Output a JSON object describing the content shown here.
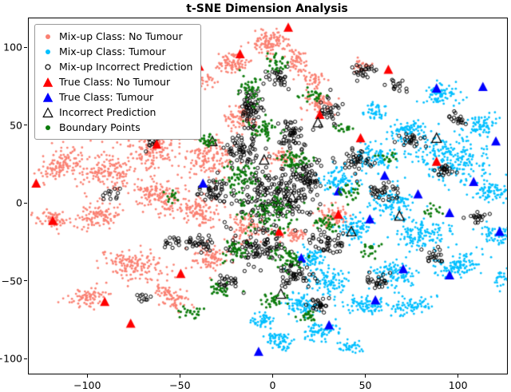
{
  "chart_data": {
    "type": "scatter",
    "title": "t-SNE Dimension Analysis",
    "xlabel": "",
    "ylabel": "",
    "xlim": [
      -132,
      126
    ],
    "ylim": [
      -109,
      119
    ],
    "x_ticks": [
      -100,
      -50,
      0,
      50,
      100
    ],
    "y_ticks": [
      -100,
      -50,
      0,
      50,
      100
    ],
    "x_tick_labels": [
      "−100",
      "−50",
      "0",
      "50",
      "100"
    ],
    "y_tick_labels": [
      "−100",
      "−50",
      "0",
      "50",
      "100"
    ],
    "grid": false,
    "legend_position": "upper-left",
    "cluster_format": [
      "cx",
      "cy",
      "rx",
      "ry",
      "angle_deg",
      "n"
    ],
    "point_format": [
      "x",
      "y"
    ],
    "series": [
      {
        "label": "Mix-up Class: No Tumour",
        "marker": "dot",
        "color": "#fa8072",
        "marker_size": 1.4,
        "clusters": [
          [
            -100,
            55,
            22,
            12,
            -15,
            260
          ],
          [
            -70,
            65,
            14,
            8,
            25,
            150
          ],
          [
            -45,
            78,
            12,
            6,
            10,
            110
          ],
          [
            -22,
            90,
            8,
            6,
            0,
            90
          ],
          [
            -3,
            103,
            9,
            7,
            0,
            110
          ],
          [
            12,
            92,
            5,
            7,
            0,
            60
          ],
          [
            -115,
            25,
            12,
            7,
            40,
            110
          ],
          [
            -90,
            20,
            16,
            10,
            -10,
            170
          ],
          [
            -65,
            35,
            12,
            9,
            20,
            130
          ],
          [
            -120,
            -10,
            9,
            5,
            -20,
            70
          ],
          [
            -95,
            -8,
            12,
            7,
            10,
            110
          ],
          [
            -60,
            5,
            14,
            10,
            0,
            150
          ],
          [
            -35,
            30,
            12,
            12,
            0,
            150
          ],
          [
            -40,
            -5,
            10,
            8,
            -25,
            110
          ],
          [
            -18,
            55,
            8,
            8,
            0,
            80
          ],
          [
            -75,
            -40,
            16,
            9,
            -15,
            150
          ],
          [
            -100,
            -60,
            10,
            6,
            15,
            80
          ],
          [
            -55,
            -60,
            10,
            6,
            -30,
            80
          ],
          [
            -35,
            -35,
            10,
            7,
            20,
            90
          ],
          [
            -15,
            -15,
            9,
            8,
            0,
            90
          ],
          [
            25,
            65,
            8,
            7,
            0,
            70
          ],
          [
            22,
            80,
            5,
            5,
            0,
            40
          ],
          [
            32,
            -8,
            8,
            6,
            -20,
            80
          ],
          [
            12,
            -20,
            6,
            5,
            0,
            45
          ],
          [
            5,
            30,
            7,
            6,
            0,
            55
          ],
          [
            48,
            88,
            5,
            4,
            0,
            30
          ]
        ]
      },
      {
        "label": "Mix-up Class: Tumour",
        "marker": "dot",
        "color": "#00bfff",
        "marker_size": 1.4,
        "clusters": [
          [
            95,
            30,
            20,
            13,
            -15,
            240
          ],
          [
            118,
            8,
            9,
            6,
            0,
            80
          ],
          [
            112,
            50,
            8,
            6,
            30,
            70
          ],
          [
            120,
            -20,
            8,
            6,
            -30,
            60
          ],
          [
            100,
            -40,
            12,
            7,
            20,
            110
          ],
          [
            80,
            -20,
            13,
            9,
            0,
            130
          ],
          [
            65,
            0,
            11,
            9,
            0,
            110
          ],
          [
            55,
            30,
            10,
            8,
            0,
            100
          ],
          [
            72,
            48,
            9,
            6,
            15,
            80
          ],
          [
            90,
            70,
            9,
            6,
            0,
            80
          ],
          [
            65,
            -45,
            11,
            7,
            -20,
            100
          ],
          [
            75,
            -65,
            9,
            5,
            10,
            70
          ],
          [
            50,
            -65,
            10,
            6,
            0,
            90
          ],
          [
            30,
            -50,
            10,
            8,
            0,
            100
          ],
          [
            15,
            -65,
            10,
            6,
            -15,
            90
          ],
          [
            25,
            -82,
            9,
            5,
            10,
            80
          ],
          [
            2,
            -88,
            8,
            5,
            -10,
            70
          ],
          [
            -5,
            -75,
            6,
            5,
            0,
            50
          ],
          [
            40,
            -92,
            6,
            4,
            0,
            40
          ],
          [
            35,
            15,
            9,
            8,
            0,
            90
          ],
          [
            45,
            -15,
            9,
            8,
            0,
            90
          ],
          [
            20,
            -35,
            8,
            6,
            0,
            70
          ],
          [
            125,
            -48,
            5,
            6,
            0,
            35
          ],
          [
            55,
            60,
            6,
            5,
            0,
            45
          ]
        ]
      },
      {
        "label": "Mix-up Incorrect Prediction",
        "marker": "ring",
        "color": "#000000",
        "marker_size": 2.1,
        "clusters": [
          [
            0,
            5,
            20,
            18,
            0,
            220
          ],
          [
            -12,
            62,
            5,
            13,
            0,
            70
          ],
          [
            -18,
            35,
            9,
            9,
            0,
            60
          ],
          [
            10,
            45,
            8,
            9,
            0,
            55
          ],
          [
            18,
            18,
            7,
            9,
            0,
            55
          ],
          [
            -8,
            -28,
            12,
            9,
            0,
            90
          ],
          [
            12,
            -45,
            9,
            7,
            0,
            50
          ],
          [
            30,
            -25,
            9,
            7,
            0,
            45
          ],
          [
            -32,
            8,
            8,
            7,
            0,
            45
          ],
          [
            -40,
            -25,
            7,
            6,
            0,
            35
          ],
          [
            45,
            28,
            9,
            7,
            0,
            40
          ],
          [
            60,
            8,
            8,
            6,
            0,
            35
          ],
          [
            3,
            80,
            6,
            6,
            0,
            30
          ],
          [
            30,
            60,
            6,
            6,
            0,
            30
          ],
          [
            48,
            85,
            6,
            5,
            0,
            25
          ],
          [
            75,
            40,
            7,
            5,
            0,
            25
          ],
          [
            92,
            22,
            6,
            5,
            0,
            25
          ],
          [
            100,
            55,
            5,
            4,
            0,
            18
          ],
          [
            110,
            -8,
            5,
            4,
            0,
            18
          ],
          [
            85,
            -35,
            6,
            5,
            0,
            20
          ],
          [
            55,
            -50,
            7,
            5,
            0,
            25
          ],
          [
            25,
            -65,
            7,
            5,
            0,
            25
          ],
          [
            -25,
            -50,
            7,
            5,
            0,
            25
          ],
          [
            -55,
            -25,
            5,
            4,
            0,
            15
          ],
          [
            -65,
            40,
            5,
            4,
            0,
            15
          ],
          [
            -88,
            8,
            4,
            4,
            0,
            12
          ],
          [
            -50,
            65,
            4,
            4,
            0,
            12
          ],
          [
            65,
            75,
            5,
            4,
            0,
            15
          ],
          [
            -70,
            -60,
            4,
            3,
            0,
            10
          ]
        ]
      },
      {
        "label": "True Class: No Tumour",
        "marker": "triangle",
        "color": "#ff0000",
        "marker_size": 6.5,
        "points": [
          [
            -128,
            13
          ],
          [
            -119,
            -11
          ],
          [
            -91,
            -63
          ],
          [
            -77,
            -77
          ],
          [
            -63,
            38
          ],
          [
            -40,
            88
          ],
          [
            -18,
            96
          ],
          [
            8,
            113
          ],
          [
            25,
            57
          ],
          [
            35,
            -7
          ],
          [
            3,
            -18
          ],
          [
            47,
            42
          ],
          [
            62,
            86
          ],
          [
            88,
            27
          ],
          [
            -50,
            -45
          ]
        ]
      },
      {
        "label": "True Class: Tumour",
        "marker": "triangle",
        "color": "#0000ff",
        "marker_size": 6.5,
        "points": [
          [
            113,
            75
          ],
          [
            88,
            74
          ],
          [
            120,
            40
          ],
          [
            108,
            14
          ],
          [
            122,
            -18
          ],
          [
            95,
            -6
          ],
          [
            78,
            6
          ],
          [
            60,
            18
          ],
          [
            52,
            -10
          ],
          [
            70,
            -42
          ],
          [
            95,
            -46
          ],
          [
            55,
            -62
          ],
          [
            30,
            -78
          ],
          [
            -8,
            -95
          ],
          [
            -38,
            13
          ],
          [
            35,
            8
          ],
          [
            15,
            -35
          ]
        ]
      },
      {
        "label": "Incorrect Prediction",
        "marker": "triangle_open",
        "color": "#000000",
        "marker_size": 6.5,
        "points": [
          [
            10,
            4
          ],
          [
            -22,
            -28
          ],
          [
            42,
            -18
          ],
          [
            24,
            52
          ],
          [
            -33,
            40
          ],
          [
            68,
            -8
          ],
          [
            4,
            -58
          ],
          [
            88,
            42
          ],
          [
            -5,
            28
          ]
        ]
      },
      {
        "label": "Boundary Points",
        "marker": "dot",
        "color": "#0a7a0a",
        "marker_size": 1.6,
        "clusters": [
          [
            -2,
            -5,
            15,
            12,
            0,
            110
          ],
          [
            -18,
            18,
            9,
            9,
            0,
            65
          ],
          [
            12,
            28,
            9,
            7,
            0,
            55
          ],
          [
            -5,
            48,
            7,
            7,
            0,
            45
          ],
          [
            -12,
            72,
            6,
            8,
            0,
            40
          ],
          [
            2,
            90,
            5,
            6,
            0,
            30
          ],
          [
            22,
            70,
            5,
            5,
            0,
            25
          ],
          [
            8,
            -35,
            9,
            7,
            0,
            50
          ],
          [
            -20,
            -30,
            8,
            7,
            0,
            40
          ],
          [
            28,
            -12,
            7,
            6,
            0,
            35
          ],
          [
            40,
            8,
            7,
            6,
            0,
            30
          ],
          [
            -35,
            40,
            6,
            5,
            0,
            25
          ],
          [
            -28,
            -55,
            7,
            5,
            0,
            28
          ],
          [
            0,
            -62,
            8,
            5,
            0,
            30
          ],
          [
            18,
            -72,
            6,
            4,
            0,
            22
          ],
          [
            -45,
            -70,
            6,
            4,
            0,
            20
          ],
          [
            52,
            -30,
            6,
            5,
            0,
            20
          ],
          [
            62,
            30,
            5,
            4,
            0,
            16
          ],
          [
            85,
            -5,
            5,
            4,
            0,
            14
          ],
          [
            -55,
            5,
            5,
            4,
            0,
            14
          ],
          [
            38,
            48,
            5,
            4,
            0,
            16
          ]
        ]
      }
    ]
  }
}
